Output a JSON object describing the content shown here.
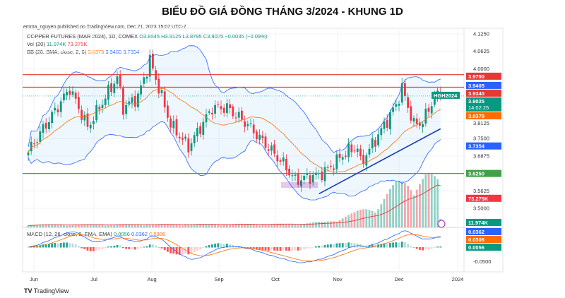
{
  "title": "BIỂU ĐỒ GIÁ ĐỒNG THÁNG 3/2024 - KHUNG 1D",
  "byline": "emma_nguyen published on TradingView.com, Dec 21, 2023 15:07 UTC-7",
  "legend": {
    "symbol": "COPPER FUTURES (MAR 2024), 1D, COMEX",
    "o": "O3.8845",
    "h": "H3.9125",
    "l": "L3.8795",
    "c": "C3.9025",
    "chg": "−0.0035 (−0.09%)",
    "vol_label": "Vol (20)",
    "vol1": "11.974K",
    "vol2": "73.275K",
    "bb_label": "BB (20, SMA, close, 2, 0)",
    "bb1": "3.8379",
    "bb2": "3.9405",
    "bb3": "3.7354",
    "macd_label": "MACD (12, 26, close, 9, EMA, EMA)",
    "macd1": "0.0056",
    "macd2": "0.0362",
    "macd3": "0.0306"
  },
  "price_axis": [
    "4.1250",
    "4.0625",
    "4.0000",
    "3.8125",
    "3.7500",
    "3.6875",
    "3.5625",
    "3.5000"
  ],
  "macd_axis": [
    "-0.0500"
  ],
  "badges": {
    "r1": "3.9790",
    "bb_up": "3.9405",
    "r2": "3.9340",
    "symbol": "HGH2024",
    "last": "3.9025",
    "countdown": "14:02:25",
    "bb_mid": "3.8379",
    "bb_low": "3.7354",
    "support": "3.6250",
    "vol_ma": "73.275K",
    "vol": "11.974K",
    "macd": "0.0362",
    "signal": "0.0306",
    "hist": "0.0056"
  },
  "time_axis": [
    "Jun",
    "Jul",
    "Aug",
    "Sep",
    "Oct",
    "Nov",
    "Dec",
    "2024"
  ],
  "footer": "TradingView",
  "colors": {
    "up": "#089981",
    "down": "#f23645",
    "bb": "#2962ff",
    "basis": "#ff6d00",
    "support": "#43a047",
    "resistance": "#e53935"
  },
  "chart_data": {
    "type": "candlestick",
    "price_range": [
      3.45,
      4.125
    ],
    "close_waypoints": [
      [
        0,
        3.7
      ],
      [
        1,
        3.72
      ],
      [
        14,
        3.93
      ],
      [
        20,
        3.79
      ],
      [
        30,
        3.97
      ],
      [
        32,
        3.86
      ],
      [
        37,
        3.9
      ],
      [
        41,
        4.03
      ],
      [
        48,
        3.8
      ],
      [
        54,
        3.72
      ],
      [
        62,
        3.86
      ],
      [
        67,
        3.86
      ],
      [
        74,
        3.8
      ],
      [
        79,
        3.74
      ],
      [
        86,
        3.66
      ],
      [
        90,
        3.6
      ],
      [
        98,
        3.62
      ],
      [
        101,
        3.64
      ],
      [
        107,
        3.7
      ],
      [
        111,
        3.72
      ],
      [
        112,
        3.66
      ],
      [
        119,
        3.78
      ],
      [
        124,
        3.87
      ],
      [
        126,
        3.93
      ],
      [
        130,
        3.8
      ],
      [
        133,
        3.81
      ],
      [
        137,
        3.9
      ],
      [
        139,
        3.9025
      ]
    ],
    "volume_waypoints_k": [
      [
        0,
        4
      ],
      [
        90,
        5
      ],
      [
        100,
        8
      ],
      [
        110,
        20
      ],
      [
        118,
        35
      ],
      [
        124,
        60
      ],
      [
        128,
        70
      ],
      [
        134,
        75
      ],
      [
        138,
        65
      ],
      [
        139,
        12
      ]
    ],
    "levels": {
      "resistance": [
        3.979,
        3.934
      ],
      "support": 3.625
    },
    "trendline": [
      [
        98,
        3.552
      ],
      [
        139,
        3.785
      ]
    ]
  }
}
